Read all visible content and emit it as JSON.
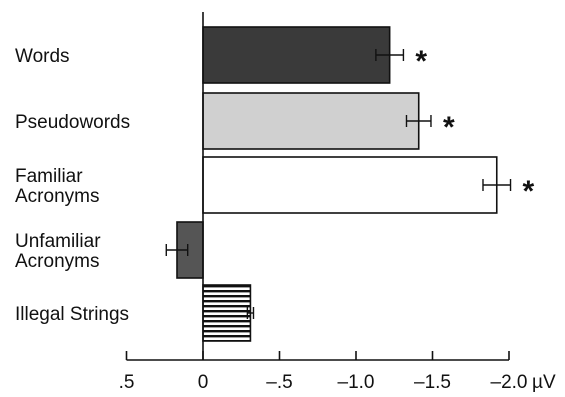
{
  "chart_data": {
    "type": "bar",
    "orientation": "horizontal",
    "categories": [
      "Words",
      "Pseudowords",
      "Familiar Acronyms",
      "Unfamiliar Acronyms",
      "Illegal Strings"
    ],
    "category_lines": [
      [
        "Words"
      ],
      [
        "Pseudowords"
      ],
      [
        "Familiar",
        "Acronyms"
      ],
      [
        "Unfamiliar",
        "Acronyms"
      ],
      [
        "Illegal Strings"
      ]
    ],
    "values": [
      -1.22,
      -1.41,
      -1.92,
      0.17,
      -0.31
    ],
    "errors": [
      0.09,
      0.08,
      0.09,
      0.07,
      0.02
    ],
    "significant": [
      true,
      true,
      true,
      false,
      false
    ],
    "significance_marker": "*",
    "bar_styles": [
      {
        "fill": "#3a3a3a",
        "pattern": "solid"
      },
      {
        "fill": "#d0d0d0",
        "pattern": "solid"
      },
      {
        "fill": "#ffffff",
        "pattern": "solid"
      },
      {
        "fill": "#555555",
        "pattern": "solid"
      },
      {
        "fill": "#ffffff",
        "pattern": "horizontal-stripes"
      }
    ],
    "xlim": [
      0.5,
      -2.0
    ],
    "xticks": [
      0.5,
      0,
      -0.5,
      -1.0,
      -1.5,
      -2.0
    ],
    "xtick_labels": [
      ".5",
      "0",
      "–.5",
      "–1.0",
      "–1.5",
      "–2.0"
    ],
    "x_unit": "µV",
    "xlabel": "",
    "ylabel": "",
    "title": ""
  }
}
